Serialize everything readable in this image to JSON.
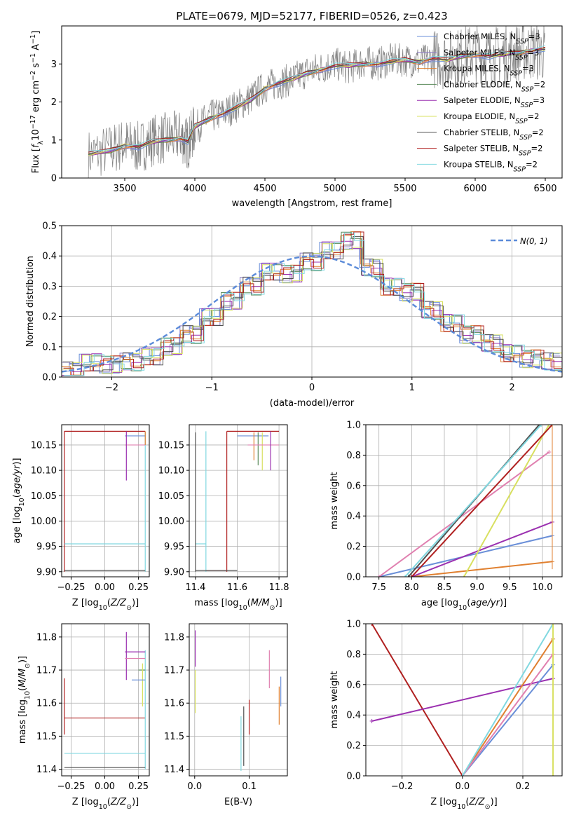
{
  "chart_data": [
    {
      "id": "spectrum",
      "type": "line",
      "title": "PLATE=0679, MJD=52177, FIBERID=0526, z=0.423",
      "xlabel": "wavelength [Angstrom, rest frame]",
      "ylabel": "Flux [fλ10⁻¹⁷ erg cm⁻² s⁻¹ A⁻¹]",
      "xlim": [
        3050,
        6620
      ],
      "ylim": [
        0,
        4.0
      ],
      "xticks": [
        3500,
        4000,
        4500,
        5000,
        5500,
        6000,
        6500
      ],
      "yticks": [
        0,
        1,
        2,
        3
      ],
      "grid": false,
      "legend_position": "top-right",
      "data_series": {
        "name": "data",
        "color": "#808080",
        "x": [
          3240,
          3400,
          3500,
          3600,
          3700,
          3800,
          3900,
          3950,
          4000,
          4100,
          4200,
          4300,
          4400,
          4500,
          4600,
          4700,
          4800,
          4900,
          5000,
          5100,
          5200,
          5300,
          5400,
          5500,
          5600,
          5700,
          5800,
          5900,
          6000,
          6100,
          6200,
          6300,
          6400,
          6500
        ],
        "y": [
          0.6,
          0.75,
          0.9,
          0.8,
          1.0,
          1.05,
          1.1,
          0.9,
          1.3,
          1.6,
          1.7,
          1.9,
          2.1,
          2.4,
          2.5,
          2.6,
          2.8,
          2.9,
          3.0,
          2.9,
          3.05,
          3.0,
          3.1,
          3.1,
          3.05,
          3.15,
          3.1,
          3.2,
          3.3,
          3.2,
          3.25,
          3.3,
          3.35,
          3.3
        ]
      },
      "model_x": [
        3240,
        3400,
        3500,
        3600,
        3700,
        3800,
        3900,
        3950,
        4000,
        4100,
        4200,
        4300,
        4400,
        4500,
        4600,
        4700,
        4800,
        4900,
        5000,
        5100,
        5200,
        5300,
        5400,
        5500,
        5600,
        5700,
        5800,
        5900,
        6000,
        6100,
        6200,
        6300,
        6400,
        6500
      ],
      "model_y": [
        0.62,
        0.72,
        0.85,
        0.82,
        0.95,
        1.0,
        1.05,
        0.95,
        1.35,
        1.55,
        1.7,
        1.85,
        2.05,
        2.35,
        2.5,
        2.6,
        2.75,
        2.85,
        2.95,
        2.95,
        3.0,
        3.0,
        3.05,
        3.1,
        3.05,
        3.15,
        3.1,
        3.2,
        3.25,
        3.2,
        3.25,
        3.3,
        3.35,
        3.4
      ],
      "series": [
        {
          "name": "Chabrier MILES, N$_{SSP}$=3",
          "label": "Chabrier MILES, N",
          "sub": "SSP",
          "suffix": "=3",
          "color": "#6a8fd8"
        },
        {
          "name": "Salpeter MILES, N$_{SSP}$=3",
          "label": "Salpeter MILES, N",
          "sub": "SSP",
          "suffix": "=3",
          "color": "#8e7cc3"
        },
        {
          "name": "Kroupa MILES, N$_{SSP}$=3",
          "label": "Kroupa MILES, N",
          "sub": "SSP",
          "suffix": "=3",
          "color": "#e08030"
        },
        {
          "name": "Chabrier ELODIE, N$_{SSP}$=2",
          "label": "Chabrier ELODIE, N",
          "sub": "SSP",
          "suffix": "=2",
          "color": "#5a8a5a"
        },
        {
          "name": "Salpeter ELODIE, N$_{SSP}$=3",
          "label": "Salpeter ELODIE, N",
          "sub": "SSP",
          "suffix": "=3",
          "color": "#9b30b0"
        },
        {
          "name": "Kroupa ELODIE, N$_{SSP}$=2",
          "label": "Kroupa ELODIE, N",
          "sub": "SSP",
          "suffix": "=2",
          "color": "#d8e060"
        },
        {
          "name": "Chabrier STELIB, N$_{SSP}$=2",
          "label": "Chabrier STELIB, N",
          "sub": "SSP",
          "suffix": "=2",
          "color": "#505050"
        },
        {
          "name": "Salpeter STELIB, N$_{SSP}$=2",
          "label": "Salpeter STELIB, N",
          "sub": "SSP",
          "suffix": "=2",
          "color": "#b02020"
        },
        {
          "name": "Kroupa STELIB, N$_{SSP}$=2",
          "label": "Kroupa STELIB, N",
          "sub": "SSP",
          "suffix": "=2",
          "color": "#80d8e0"
        }
      ]
    },
    {
      "id": "residuals",
      "type": "line",
      "title": "",
      "xlabel": "(data-model)/error",
      "ylabel": "Normed distribution",
      "xlim": [
        -2.5,
        2.5
      ],
      "ylim": [
        0,
        0.5
      ],
      "xticks": [
        -2,
        -1,
        0,
        1,
        2
      ],
      "yticks": [
        0.0,
        0.1,
        0.2,
        0.3,
        0.4,
        0.5
      ],
      "grid": true,
      "legend_position": "top-right",
      "gaussian": {
        "name": "N(0, 1)",
        "mean": 0,
        "sigma": 1,
        "color": "#5b8bd9"
      },
      "hist_bins": [
        -2.5,
        -2.3,
        -2.1,
        -1.9,
        -1.7,
        -1.5,
        -1.3,
        -1.1,
        -0.9,
        -0.7,
        -0.5,
        -0.3,
        -0.1,
        0.1,
        0.3,
        0.5,
        0.7,
        0.9,
        1.1,
        1.3,
        1.5,
        1.7,
        1.9,
        2.1,
        2.3,
        2.5
      ],
      "hist_values": [
        0.02,
        0.05,
        0.04,
        0.05,
        0.07,
        0.1,
        0.14,
        0.2,
        0.25,
        0.3,
        0.35,
        0.34,
        0.38,
        0.42,
        0.45,
        0.36,
        0.3,
        0.28,
        0.22,
        0.18,
        0.14,
        0.11,
        0.08,
        0.06,
        0.05
      ]
    },
    {
      "id": "age-vs-Z",
      "type": "scatter",
      "xlabel": "Z [log10(Z/Z⊙)]",
      "ylabel": "age  [log10(age/yr)]",
      "xlim": [
        -0.32,
        0.33
      ],
      "ylim": [
        9.89,
        10.19
      ],
      "xticks": [
        -0.25,
        0.0,
        0.25
      ],
      "yticks": [
        9.9,
        9.95,
        10.0,
        10.05,
        10.1,
        10.15
      ],
      "grid": true
    },
    {
      "id": "age-vs-mass",
      "type": "scatter",
      "xlabel": "mass [log10(M/M⊙)]",
      "ylabel": "",
      "xlim": [
        11.37,
        11.84
      ],
      "ylim": [
        9.89,
        10.19
      ],
      "xticks": [
        11.4,
        11.6,
        11.8
      ],
      "yticks": [
        9.9,
        9.95,
        10.0,
        10.05,
        10.1,
        10.15
      ],
      "grid": true
    },
    {
      "id": "weight-vs-age",
      "type": "line",
      "xlabel": "age  [log10(age/yr)]",
      "ylabel": "mass weight",
      "xlim": [
        7.3,
        10.3
      ],
      "ylim": [
        0,
        1.0
      ],
      "xticks": [
        7.5,
        8.0,
        8.5,
        9.0,
        9.5,
        10.0
      ],
      "yticks": [
        0.0,
        0.2,
        0.4,
        0.6,
        0.8,
        1.0
      ],
      "grid": true,
      "lines": [
        {
          "color": "#6a8fd8",
          "x": [
            7.5,
            10.15
          ],
          "y": [
            0.0,
            0.27
          ]
        },
        {
          "color": "#e08030",
          "x": [
            8.0,
            10.15
          ],
          "y": [
            0.0,
            0.1
          ]
        },
        {
          "color": "#9b30b0",
          "x": [
            8.0,
            10.15
          ],
          "y": [
            0.0,
            0.36
          ]
        },
        {
          "color": "#e080b0",
          "x": [
            7.5,
            10.1
          ],
          "y": [
            0.0,
            0.82
          ]
        },
        {
          "color": "#d8e060",
          "x": [
            8.8,
            10.1
          ],
          "y": [
            0.0,
            1.0
          ]
        },
        {
          "color": "#505050",
          "x": [
            7.95,
            9.95
          ],
          "y": [
            0.0,
            1.0
          ]
        },
        {
          "color": "#80d8e0",
          "x": [
            7.9,
            9.98
          ],
          "y": [
            0.0,
            1.0
          ]
        },
        {
          "color": "#b02020",
          "x": [
            8.0,
            10.15
          ],
          "y": [
            0.0,
            1.0
          ]
        }
      ]
    },
    {
      "id": "mass-vs-Z",
      "type": "scatter",
      "xlabel": "Z [log10(Z/Z⊙)]",
      "ylabel": "mass [log10(M/M⊙)]",
      "xlim": [
        -0.32,
        0.33
      ],
      "ylim": [
        11.38,
        11.84
      ],
      "xticks": [
        -0.25,
        0.0,
        0.25
      ],
      "yticks": [
        11.4,
        11.5,
        11.6,
        11.7,
        11.8
      ],
      "grid": true
    },
    {
      "id": "mass-vs-ebv",
      "type": "scatter",
      "xlabel": "E(B-V)",
      "ylabel": "",
      "xlim": [
        -0.01,
        0.17
      ],
      "ylim": [
        11.38,
        11.84
      ],
      "xticks": [
        0.0,
        0.1
      ],
      "yticks": [
        11.4,
        11.5,
        11.6,
        11.7,
        11.8
      ],
      "grid": true
    },
    {
      "id": "weight-vs-Z",
      "type": "line",
      "xlabel": "Z [log10(Z/Z⊙)]",
      "ylabel": "mass weight",
      "xlim": [
        -0.32,
        0.33
      ],
      "ylim": [
        0,
        1.0
      ],
      "xticks": [
        -0.2,
        0.0,
        0.2
      ],
      "yticks": [
        0.0,
        0.2,
        0.4,
        0.6,
        0.8,
        1.0
      ],
      "grid": true,
      "lines": [
        {
          "color": "#b02020",
          "x": [
            -0.3,
            0.0
          ],
          "y": [
            1.0,
            0.0
          ]
        },
        {
          "color": "#9b30b0",
          "x": [
            -0.3,
            0.3
          ],
          "y": [
            0.36,
            0.64
          ]
        },
        {
          "color": "#6a8fd8",
          "x": [
            0.0,
            0.3
          ],
          "y": [
            0.0,
            0.73
          ]
        },
        {
          "color": "#e08030",
          "x": [
            0.0,
            0.3
          ],
          "y": [
            0.0,
            0.9
          ]
        },
        {
          "color": "#e080b0",
          "x": [
            0.0,
            0.3
          ],
          "y": [
            0.0,
            0.8
          ]
        },
        {
          "color": "#80d8e0",
          "x": [
            0.0,
            0.3
          ],
          "y": [
            0.0,
            1.0
          ]
        }
      ]
    }
  ]
}
